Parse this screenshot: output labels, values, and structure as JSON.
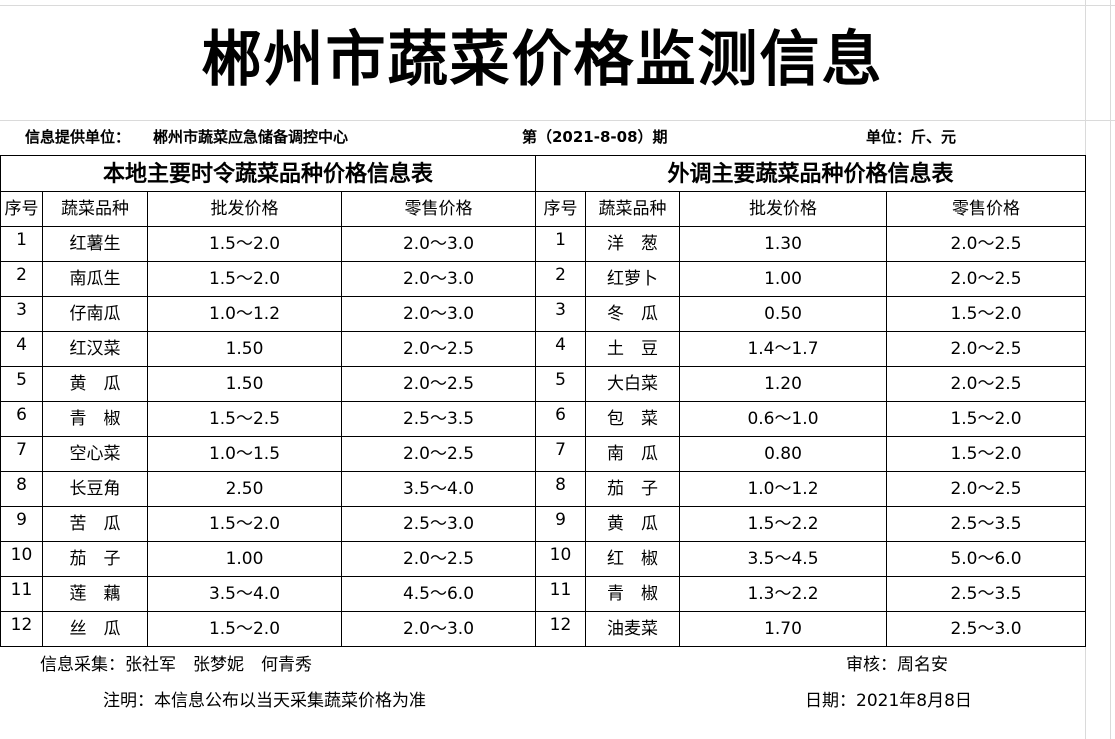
{
  "title": "郴州市蔬菜价格监测信息",
  "info": {
    "provider_label": "信息提供单位：",
    "provider": "郴州市蔬菜应急储备调控中心",
    "period": "第（2021-8-08）期",
    "unit": "单位：斤、元"
  },
  "local": {
    "caption": "本地主要时令蔬菜品种价格信息表",
    "headers": [
      "序号",
      "蔬菜品种",
      "批发价格",
      "零售价格"
    ],
    "rows": [
      [
        "1",
        "红薯生",
        "1.5～2.0",
        "2.0～3.0"
      ],
      [
        "2",
        "南瓜生",
        "1.5～2.0",
        "2.0～3.0"
      ],
      [
        "3",
        "仔南瓜",
        "1.0～1.2",
        "2.0～3.0"
      ],
      [
        "4",
        "红汉菜",
        "1.50",
        "2.0～2.5"
      ],
      [
        "5",
        "黄　瓜",
        "1.50",
        "2.0～2.5"
      ],
      [
        "6",
        "青　椒",
        "1.5～2.5",
        "2.5～3.5"
      ],
      [
        "7",
        "空心菜",
        "1.0～1.5",
        "2.0～2.5"
      ],
      [
        "8",
        "长豆角",
        "2.50",
        "3.5～4.0"
      ],
      [
        "9",
        "苦　瓜",
        "1.5～2.0",
        "2.5～3.0"
      ],
      [
        "10",
        "茄　子",
        "1.00",
        "2.0～2.5"
      ],
      [
        "11",
        "莲　藕",
        "3.5～4.0",
        "4.5～6.0"
      ],
      [
        "12",
        "丝　瓜",
        "1.5～2.0",
        "2.0～3.0"
      ]
    ]
  },
  "external": {
    "caption": "外调主要蔬菜品种价格信息表",
    "headers": [
      "序号",
      "蔬菜品种",
      "批发价格",
      "零售价格"
    ],
    "rows": [
      [
        "1",
        "洋　葱",
        "1.30",
        "2.0～2.5"
      ],
      [
        "2",
        "红萝卜",
        "1.00",
        "2.0～2.5"
      ],
      [
        "3",
        "冬　瓜",
        "0.50",
        "1.5～2.0"
      ],
      [
        "4",
        "土　豆",
        "1.4～1.7",
        "2.0～2.5"
      ],
      [
        "5",
        "大白菜",
        "1.20",
        "2.0～2.5"
      ],
      [
        "6",
        "包　菜",
        "0.6～1.0",
        "1.5～2.0"
      ],
      [
        "7",
        "南　瓜",
        "0.80",
        "1.5～2.0"
      ],
      [
        "8",
        "茄　子",
        "1.0～1.2",
        "2.0～2.5"
      ],
      [
        "9",
        "黄　瓜",
        "1.5～2.2",
        "2.5～3.5"
      ],
      [
        "10",
        "红　椒",
        "3.5～4.5",
        "5.0～6.0"
      ],
      [
        "11",
        "青　椒",
        "1.3～2.2",
        "2.5～3.5"
      ],
      [
        "12",
        "油麦菜",
        "1.70",
        "2.5～3.0"
      ]
    ]
  },
  "footer": {
    "collectors": "信息采集：张社军　张梦妮　何青秀",
    "reviewer": "审核：周名安",
    "note": "注明：本信息公布以当天采集蔬菜价格为准",
    "date": "日期：2021年8月8日"
  }
}
